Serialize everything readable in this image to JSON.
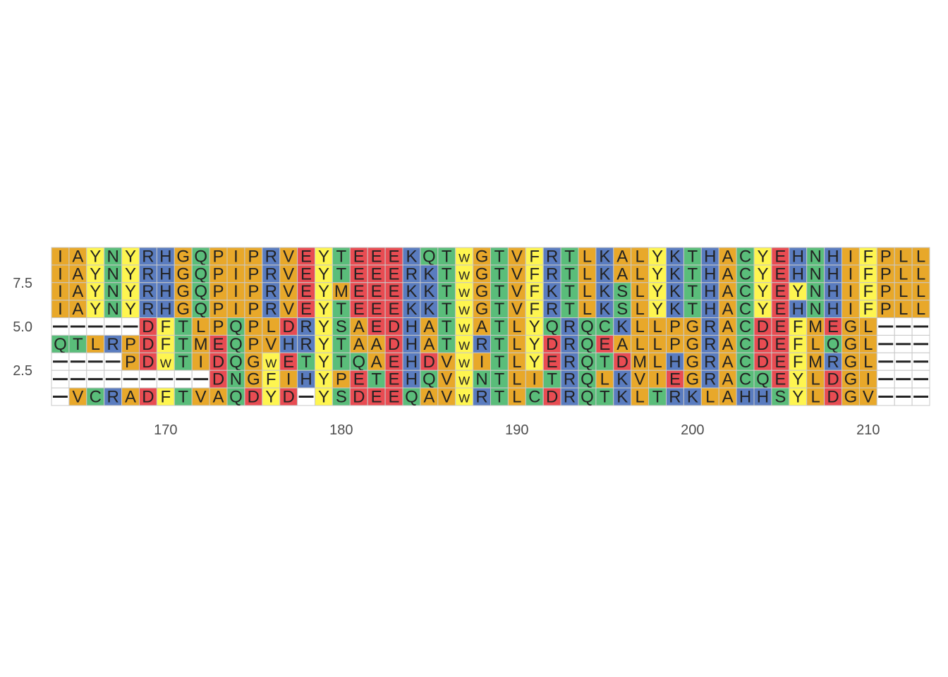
{
  "chart_data": {
    "type": "heatmap",
    "title": "",
    "xlabel": "",
    "ylabel": "",
    "x_start": 164,
    "x_end": 213,
    "x_ticks": [
      170,
      180,
      190,
      200,
      210
    ],
    "y_ticks": [
      7.5,
      5.0,
      2.5
    ],
    "y_tick_labels": [
      "7.5",
      "5.0",
      "2.5"
    ],
    "ylim": [
      0.5,
      9.5
    ],
    "gap_char": "-",
    "colors": {
      "hydrophobic": "#E8A82A",
      "aromatic": "#FEF550",
      "polar": "#5ABD7A",
      "basic": "#5A7CBF",
      "acidic": "#E84C52",
      "gap": "#FFFFFF",
      "grid": "#C8C8C8",
      "letter": "#222222"
    },
    "residue_groups": {
      "hydrophobic": "AILMPVG",
      "aromatic": "FYW",
      "polar": "STNQC",
      "basic": "KRH",
      "acidic": "DE"
    },
    "rows": [
      "IAYNYRHGQPIPRVEYTEEEKQTWGTVFRTLKALYKTHACYEHNHIFPLL",
      "IAYNYRHGQPIPRVEYTEEERKTWGTVFRTLKALYKTHACYEHNHIFPLL",
      "IAYNYRHGQPIPRVEYMEEEKKTWGTVFKTLKSLYKTHACYEYNHIFPLL",
      "IAYNYRHGQPIPRVEYTEEEKKTWGTVFRTLKSLYKTHACYEHNHIFPLL",
      "-----DFTLPQPLDRYSAEDHATWATLYQRQCKLLPGRACDEFMEGL---",
      "QTLRPDFTMEQPVHRYTAADHATWRTLYDRQEALLPGRACDEFLQGL---",
      "----PDWTIDQGWETYTQAEHDVWITLYERQTDMLHGRACDEFMRGL---",
      "---------DNGFIHYPETEHQVWNTLITRQLKVIEGRACQEYLDGI---",
      "-VCRADFTVAQDYD-YSDEEQAVWRTLCDRQTKLTRKLAHHSYLDGV---"
    ]
  }
}
